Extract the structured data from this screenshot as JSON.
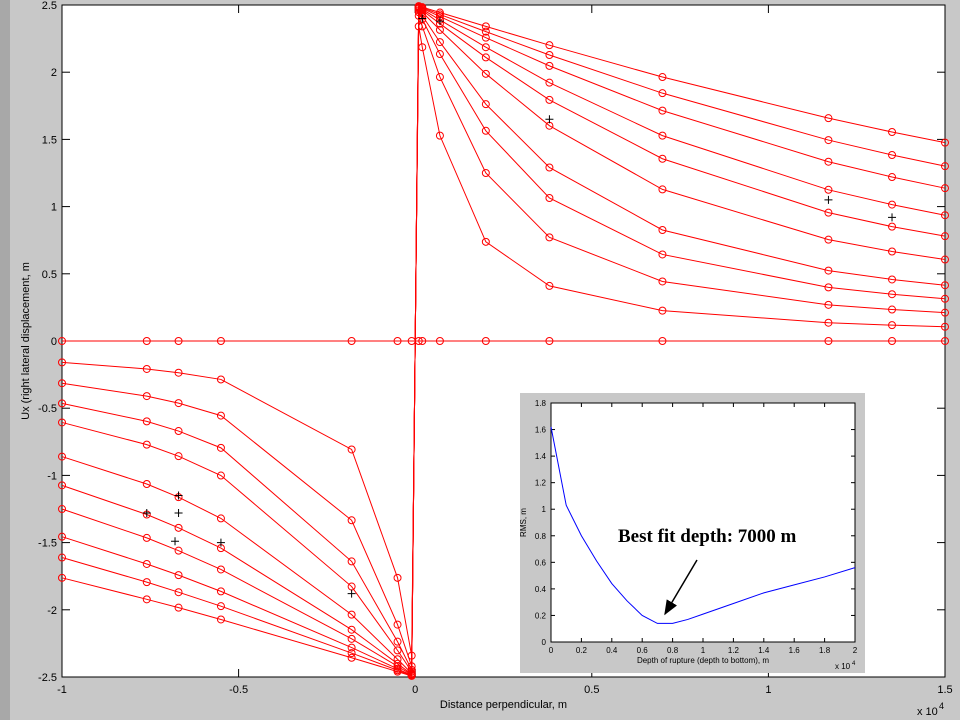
{
  "chart_data": [
    {
      "type": "line",
      "xlabel": "Distance perpendicular, m",
      "ylabel": "Ux (right lateral displacement, m",
      "x_scale_label": "x 10",
      "x_scale_exponent": 4,
      "xlim": [
        -1,
        1.5
      ],
      "xticks": [
        -1,
        -0.5,
        0,
        0.5,
        1,
        1.5
      ],
      "ylim": [
        -2.5,
        2.5
      ],
      "yticks": [
        -2.5,
        -2,
        -1.5,
        -1,
        -0.5,
        0,
        0.5,
        1,
        1.5,
        2,
        2.5
      ],
      "color": "#ff0000",
      "marker": "o",
      "x": [
        -1,
        -0.76,
        -0.67,
        -0.55,
        -0.18,
        -0.05,
        -0.01,
        0.01,
        0.02,
        0.07,
        0.2,
        0.38,
        0.7,
        1.17,
        1.35,
        1.5
      ],
      "series": [
        {
          "values": [
            -0.159,
            -0.208,
            -0.236,
            -0.286,
            -0.807,
            -1.762,
            -2.341,
            2.341,
            2.186,
            1.528,
            0.738,
            0.41,
            0.226,
            0.136,
            0.118,
            0.106
          ]
        },
        {
          "values": [
            -0.314,
            -0.41,
            -0.462,
            -0.555,
            -1.334,
            -2.11,
            -2.42,
            2.42,
            2.341,
            1.964,
            1.25,
            0.771,
            0.443,
            0.269,
            0.234,
            0.211
          ]
        },
        {
          "values": [
            -0.464,
            -0.598,
            -0.67,
            -0.795,
            -1.64,
            -2.237,
            -2.447,
            2.447,
            2.394,
            2.135,
            1.564,
            1.064,
            0.644,
            0.399,
            0.348,
            0.314
          ]
        },
        {
          "values": [
            -0.606,
            -0.771,
            -0.857,
            -1.001,
            -1.827,
            -2.302,
            -2.46,
            2.46,
            2.42,
            2.224,
            1.762,
            1.291,
            0.826,
            0.524,
            0.458,
            0.415
          ]
        },
        {
          "values": [
            -0.86,
            -1.064,
            -1.162,
            -1.32,
            -2.036,
            -2.368,
            -2.473,
            2.473,
            2.447,
            2.315,
            1.988,
            1.602,
            1.128,
            0.754,
            0.666,
            0.606
          ]
        },
        {
          "values": [
            -1.074,
            -1.291,
            -1.39,
            -1.541,
            -2.148,
            -2.401,
            -2.48,
            2.48,
            2.46,
            2.361,
            2.11,
            1.794,
            1.356,
            0.955,
            0.851,
            0.78
          ]
        },
        {
          "values": [
            -1.25,
            -1.465,
            -1.56,
            -1.7,
            -2.216,
            -2.42,
            -2.484,
            2.484,
            2.468,
            2.389,
            2.186,
            1.922,
            1.528,
            1.125,
            1.015,
            0.936
          ]
        },
        {
          "values": [
            -1.456,
            -1.659,
            -1.742,
            -1.863,
            -2.281,
            -2.439,
            -2.488,
            2.488,
            2.475,
            2.414,
            2.257,
            2.047,
            1.714,
            1.334,
            1.22,
            1.137
          ]
        },
        {
          "values": [
            -1.611,
            -1.794,
            -1.869,
            -1.973,
            -2.322,
            -2.45,
            -2.49,
            2.49,
            2.48,
            2.43,
            2.302,
            2.128,
            1.844,
            1.495,
            1.384,
            1.301
          ]
        },
        {
          "values": [
            -1.762,
            -1.922,
            -1.984,
            -2.072,
            -2.357,
            -2.46,
            -2.492,
            2.492,
            2.484,
            2.444,
            2.341,
            2.201,
            1.964,
            1.658,
            1.555,
            1.476
          ]
        },
        {
          "values": [
            0,
            0,
            0,
            0,
            0,
            0,
            0,
            0,
            0,
            0,
            0,
            0,
            0,
            0,
            0,
            0
          ]
        }
      ],
      "observed": {
        "color": "#000000",
        "marker": "+",
        "x": [
          -0.76,
          -0.68,
          -0.67,
          -0.67,
          -0.55,
          -0.18,
          0.02,
          0.07,
          0.38,
          1.17,
          1.35
        ],
        "values": [
          -1.28,
          -1.49,
          -1.15,
          -1.28,
          -1.5,
          -1.88,
          2.4,
          2.38,
          1.65,
          1.05,
          0.92
        ]
      }
    },
    {
      "type": "line",
      "xlabel": "Depth of rupture (depth to bottom), m",
      "ylabel": "RMS, m",
      "x_scale_label": "x 10",
      "x_scale_exponent": 4,
      "annotation": "Best fit depth: 7000 m",
      "xlim": [
        0,
        2
      ],
      "xticks": [
        0,
        0.2,
        0.4,
        0.6,
        0.8,
        1,
        1.2,
        1.4,
        1.6,
        1.8,
        2
      ],
      "ylim": [
        0,
        1.8
      ],
      "yticks": [
        0,
        0.2,
        0.4,
        0.6,
        0.8,
        1,
        1.2,
        1.4,
        1.6,
        1.8
      ],
      "color": "#0000ff",
      "x": [
        0,
        0.1,
        0.2,
        0.3,
        0.4,
        0.5,
        0.6,
        0.7,
        0.8,
        0.9,
        1,
        1.2,
        1.4,
        1.6,
        1.8,
        2
      ],
      "series": [
        {
          "values": [
            1.62,
            1.03,
            0.8,
            0.61,
            0.44,
            0.31,
            0.2,
            0.14,
            0.14,
            0.17,
            0.21,
            0.29,
            0.37,
            0.43,
            0.49,
            0.56
          ]
        }
      ]
    }
  ]
}
